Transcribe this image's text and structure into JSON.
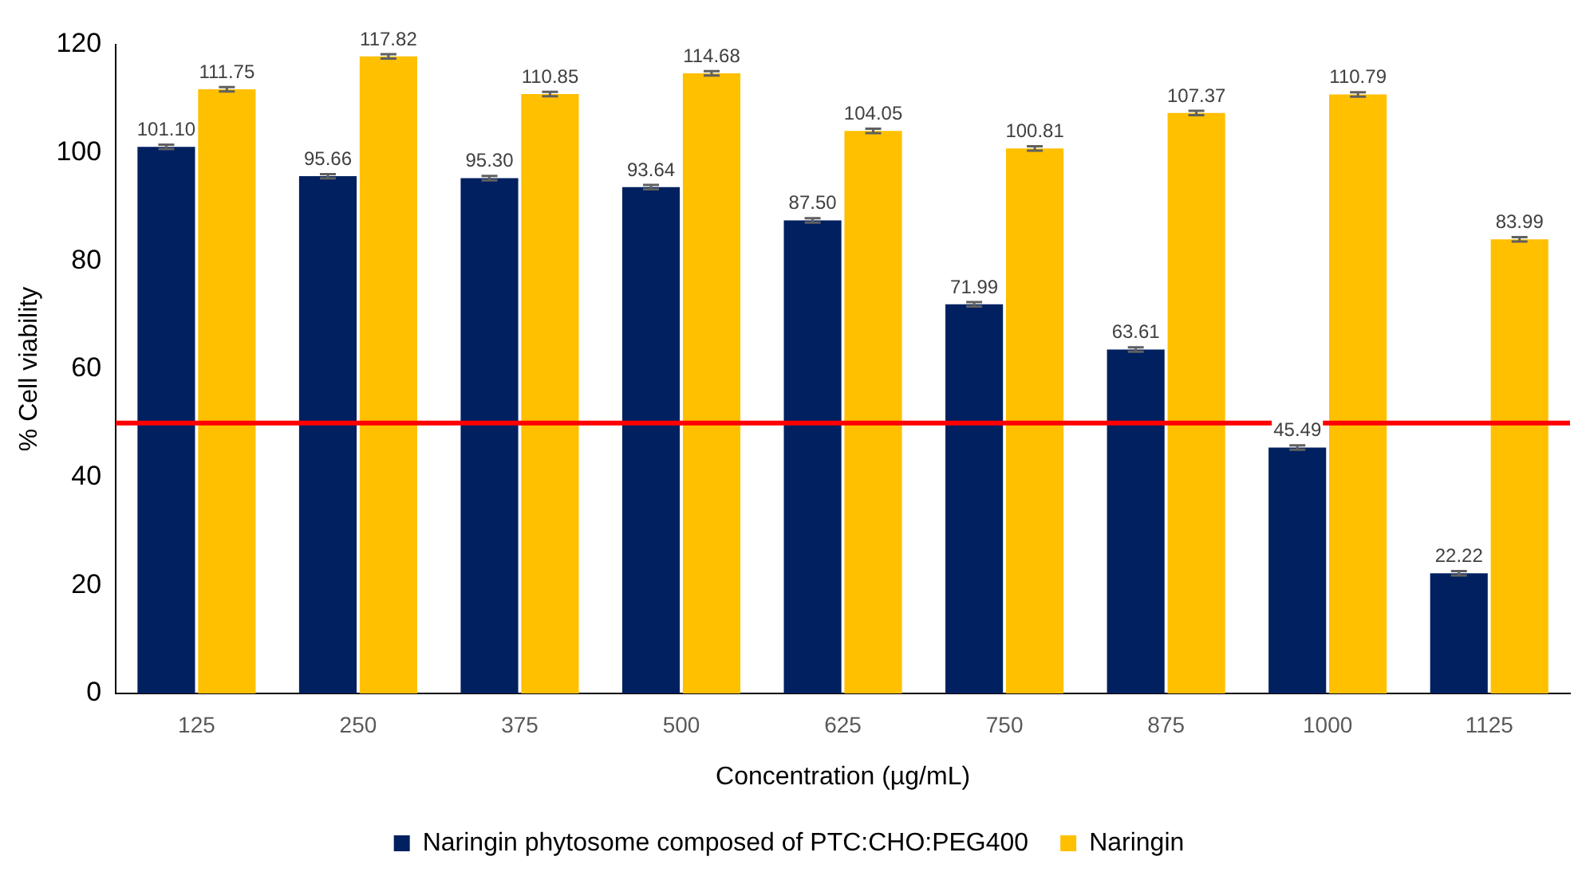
{
  "chart_data": {
    "type": "bar",
    "xlabel": "Concentration (µg/mL)",
    "ylabel": "% Cell viability",
    "categories": [
      "125",
      "250",
      "375",
      "500",
      "625",
      "750",
      "875",
      "1000",
      "1125"
    ],
    "series": [
      {
        "name": "Naringin phytosome composed of PTC:CHO:PEG400",
        "color": "#002060",
        "values": [
          101.1,
          95.66,
          95.3,
          93.64,
          87.5,
          71.99,
          63.61,
          45.49,
          22.22
        ],
        "value_labels": [
          "101.10",
          "95.66",
          "95.30",
          "93.64",
          "87.50",
          "71.99",
          "63.61",
          "45.49",
          "22.22"
        ],
        "errors": [
          0.4,
          0.4,
          0.4,
          0.4,
          0.4,
          0.4,
          0.4,
          0.4,
          0.4
        ]
      },
      {
        "name": "Naringin",
        "color": "#ffc000",
        "values": [
          111.75,
          117.82,
          110.85,
          114.68,
          104.05,
          100.81,
          107.37,
          110.79,
          83.99
        ],
        "value_labels": [
          "111.75",
          "117.82",
          "110.85",
          "114.68",
          "104.05",
          "100.81",
          "107.37",
          "110.79",
          "83.99"
        ],
        "errors": [
          0.4,
          0.4,
          0.4,
          0.4,
          0.4,
          0.4,
          0.4,
          0.4,
          0.4
        ]
      }
    ],
    "ylim": [
      0,
      120
    ],
    "yticks": [
      0,
      20,
      40,
      60,
      80,
      100,
      120
    ],
    "ref_lines": [
      {
        "axis": "y",
        "value": 50,
        "color": "#ff0000"
      }
    ],
    "grid": false,
    "legend": "bottom"
  }
}
